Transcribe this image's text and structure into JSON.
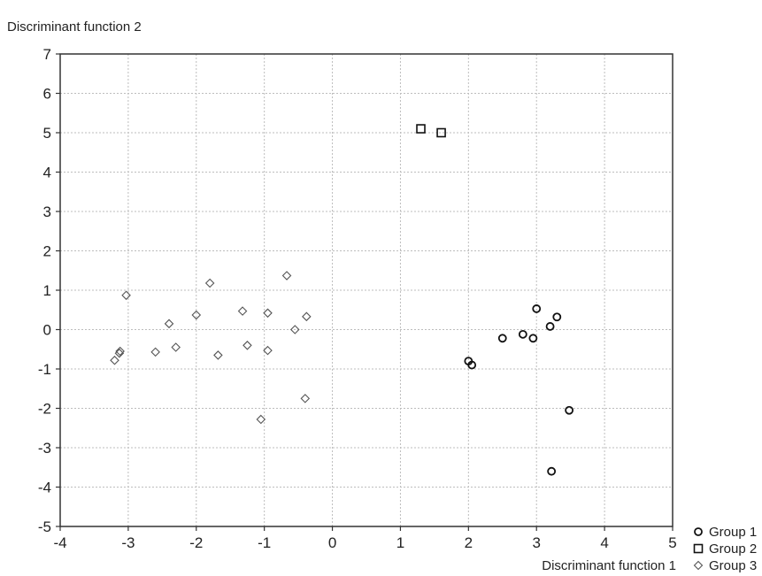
{
  "chart_data": {
    "type": "scatter",
    "title": "",
    "xlabel": "Discriminant function 1",
    "ylabel": "Discriminant function 2",
    "xlim": [
      -4,
      5
    ],
    "ylim": [
      -5,
      7
    ],
    "xticks": [
      -4,
      -3,
      -2,
      -1,
      0,
      1,
      2,
      3,
      4,
      5
    ],
    "yticks": [
      -5,
      -4,
      -3,
      -2,
      -1,
      0,
      1,
      2,
      3,
      4,
      5,
      6,
      7
    ],
    "grid": true,
    "grid_style": "dotted",
    "legend_position": "bottom-right, outside plot",
    "series": [
      {
        "name": "Group 1",
        "marker": "circle",
        "points": [
          [
            2.0,
            -0.8
          ],
          [
            2.05,
            -0.9
          ],
          [
            2.5,
            -0.22
          ],
          [
            2.8,
            -0.12
          ],
          [
            2.95,
            -0.22
          ],
          [
            3.0,
            0.53
          ],
          [
            3.2,
            0.08
          ],
          [
            3.3,
            0.32
          ],
          [
            3.48,
            -2.05
          ],
          [
            3.22,
            -3.6
          ]
        ]
      },
      {
        "name": "Group 2",
        "marker": "square",
        "points": [
          [
            1.3,
            5.1
          ],
          [
            1.6,
            5.0
          ]
        ]
      },
      {
        "name": "Group 3",
        "marker": "diamond",
        "points": [
          [
            -3.2,
            -0.78
          ],
          [
            -3.13,
            -0.6
          ],
          [
            -3.12,
            -0.55
          ],
          [
            -3.03,
            0.87
          ],
          [
            -2.6,
            -0.57
          ],
          [
            -2.4,
            0.15
          ],
          [
            -2.3,
            -0.45
          ],
          [
            -2.0,
            0.37
          ],
          [
            -1.8,
            1.18
          ],
          [
            -1.68,
            -0.65
          ],
          [
            -1.32,
            0.47
          ],
          [
            -1.25,
            -0.4
          ],
          [
            -1.05,
            -2.28
          ],
          [
            -0.95,
            0.42
          ],
          [
            -0.95,
            -0.53
          ],
          [
            -0.67,
            1.37
          ],
          [
            -0.55,
            0.0
          ],
          [
            -0.4,
            -1.75
          ],
          [
            -0.38,
            0.33
          ]
        ]
      }
    ]
  }
}
